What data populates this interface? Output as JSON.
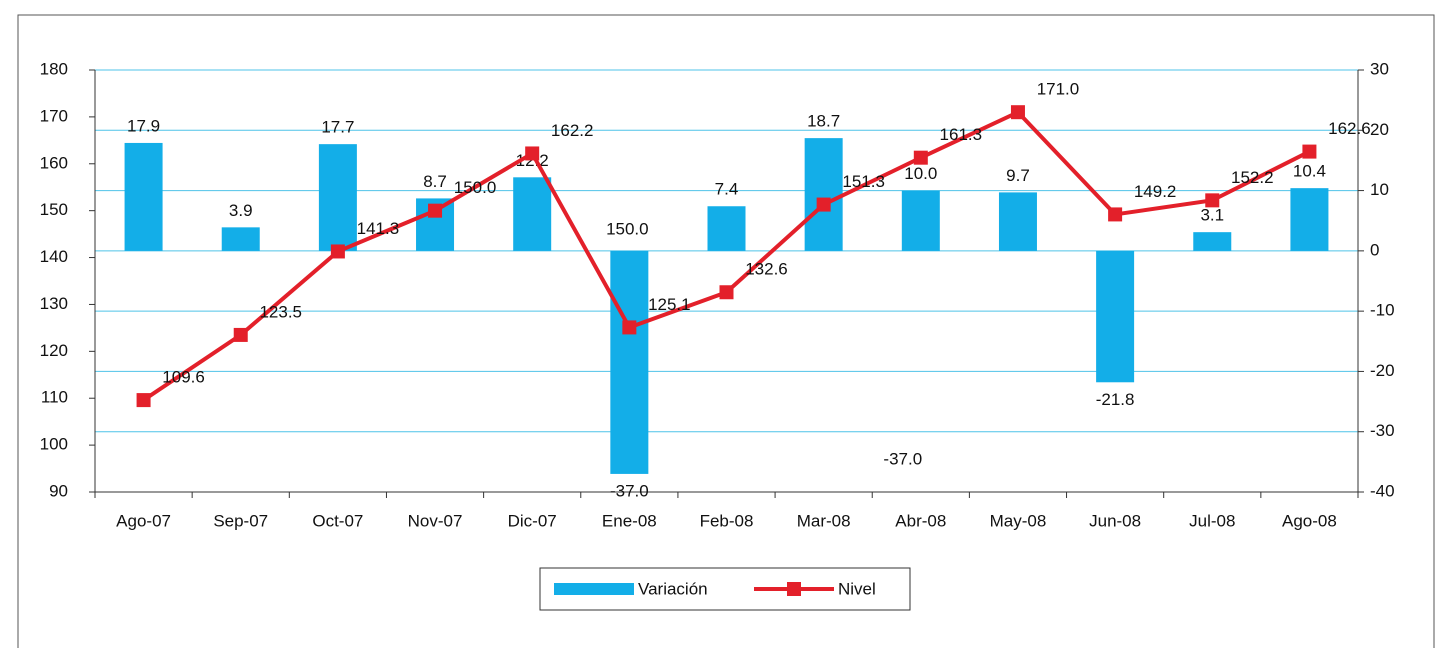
{
  "chart_data": {
    "type": "bar-line",
    "categories": [
      "Ago-07",
      "Sep-07",
      "Oct-07",
      "Nov-07",
      "Dic-07",
      "Ene-08",
      "Feb-08",
      "Mar-08",
      "Abr-08",
      "May-08",
      "Jun-08",
      "Jul-08",
      "Ago-08"
    ],
    "series": [
      {
        "name": "Variación",
        "type": "bar",
        "axis": "y2",
        "color": "#13aee8",
        "values": [
          17.9,
          3.9,
          17.7,
          8.7,
          12.2,
          -37.0,
          7.4,
          18.7,
          10.0,
          9.7,
          -21.8,
          3.1,
          10.4
        ],
        "value_labels": [
          "17.9",
          "3.9",
          "17.7",
          "8.7",
          "12.2",
          "-37.0",
          "7.4",
          "18.7",
          "10.0",
          "9.7",
          "-21.8",
          "3.1",
          "10.4"
        ]
      },
      {
        "name": "Nivel",
        "type": "line",
        "axis": "y",
        "color": "#e3202a",
        "values": [
          109.6,
          123.5,
          141.3,
          150.0,
          162.2,
          125.1,
          132.6,
          151.3,
          161.3,
          171.0,
          149.2,
          152.2,
          162.6
        ],
        "value_labels": [
          "109.6",
          "123.5",
          "141.3",
          "150.0",
          "162.2",
          "125.1",
          "132.6",
          "151.3",
          "161.3",
          "171.0",
          "149.2",
          "152.2",
          "162.6"
        ]
      }
    ],
    "annotations": [
      "150.0",
      "-37.0"
    ],
    "ylim": [
      90,
      180
    ],
    "yticks": [
      90,
      100,
      110,
      120,
      130,
      140,
      150,
      160,
      170,
      180
    ],
    "y2lim": [
      -40,
      30
    ],
    "y2ticks": [
      -40,
      -30,
      -20,
      -10,
      0,
      10,
      20,
      30
    ],
    "grid": true,
    "legend": "bottom"
  }
}
